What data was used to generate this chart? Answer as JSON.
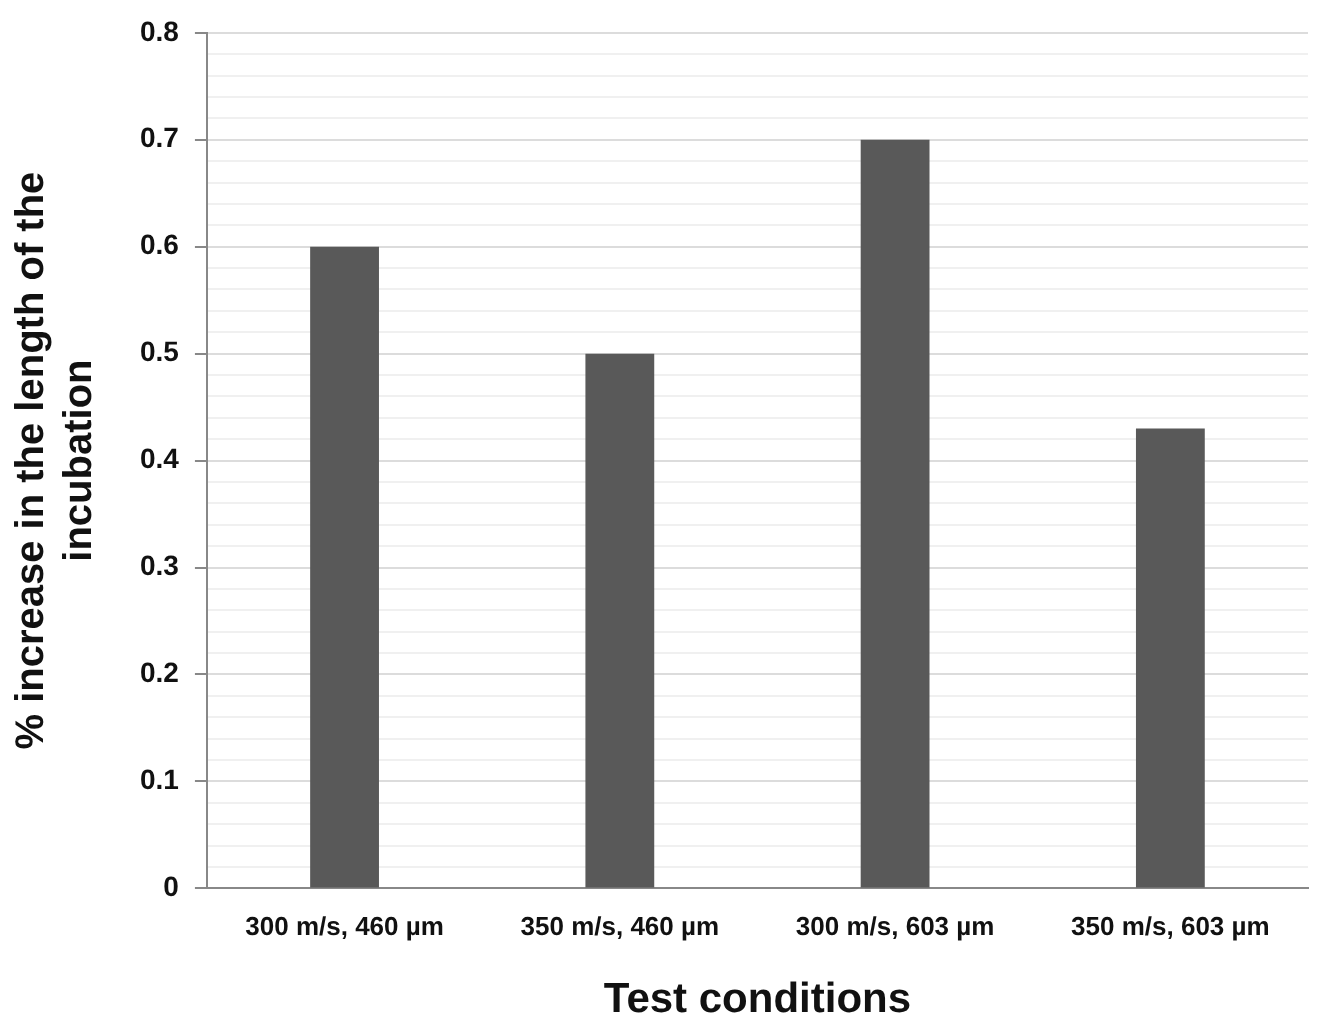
{
  "chart_data": {
    "type": "bar",
    "xlabel": "Test conditions",
    "ylabel": "% increase in the length of the incubation",
    "categories": [
      "300 m/s, 460 µm",
      "350 m/s, 460 µm",
      "300 m/s, 603 µm",
      "350 m/s, 603 µm"
    ],
    "values": [
      0.6,
      0.5,
      0.7,
      0.43
    ],
    "color": "#595959",
    "ylim": [
      0,
      0.8
    ],
    "yticks": [
      0,
      {
        "value": 0.02,
        "label": null
      },
      {
        "value": 0.04,
        "label": null
      },
      {
        "value": 0.06,
        "label": null
      },
      {
        "value": 0.08,
        "label": null
      },
      0.1,
      {
        "value": 0.12,
        "label": null
      },
      {
        "value": 0.14,
        "label": null
      },
      {
        "value": 0.16,
        "label": null
      },
      {
        "value": 0.18,
        "label": null
      },
      0.2,
      {
        "value": 0.22,
        "label": null
      },
      {
        "value": 0.24,
        "label": null
      },
      {
        "value": 0.26,
        "label": null
      },
      {
        "value": 0.28,
        "label": null
      },
      0.3,
      {
        "value": 0.32,
        "label": null
      },
      {
        "value": 0.34,
        "label": null
      },
      {
        "value": 0.36,
        "label": null
      },
      {
        "value": 0.38,
        "label": null
      },
      0.4,
      {
        "value": 0.42,
        "label": null
      },
      {
        "value": 0.44,
        "label": null
      },
      {
        "value": 0.46,
        "label": null
      },
      {
        "value": 0.48,
        "label": null
      },
      0.5,
      {
        "value": 0.52,
        "label": null
      },
      {
        "value": 0.54,
        "label": null
      },
      {
        "value": 0.56,
        "label": null
      },
      {
        "value": 0.58,
        "label": null
      },
      0.6,
      {
        "value": 0.62,
        "label": null
      },
      {
        "value": 0.64,
        "label": null
      },
      {
        "value": 0.66,
        "label": null
      },
      {
        "value": 0.68,
        "label": null
      },
      0.7,
      {
        "value": 0.72,
        "label": null
      },
      {
        "value": 0.74,
        "label": null
      },
      {
        "value": 0.76,
        "label": null
      },
      {
        "value": 0.78,
        "label": null
      },
      0.8
    ],
    "grid": "y",
    "legend": false
  }
}
